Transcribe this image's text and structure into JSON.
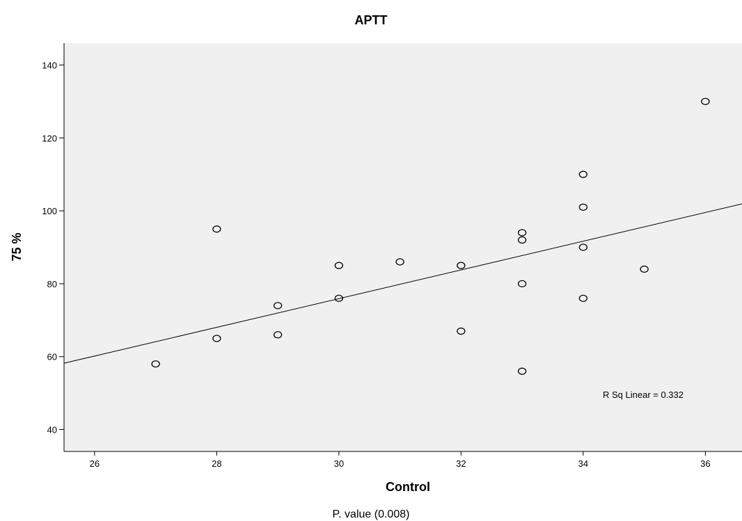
{
  "chart_data": {
    "type": "scatter",
    "title": "APTT",
    "xlabel": "Control",
    "ylabel": "75 %",
    "xlim": [
      25.5,
      36.6
    ],
    "ylim": [
      34,
      146
    ],
    "xticks": [
      26,
      28,
      30,
      32,
      34,
      36
    ],
    "yticks": [
      40,
      60,
      80,
      100,
      120,
      140
    ],
    "points": [
      {
        "x": 27,
        "y": 58
      },
      {
        "x": 28,
        "y": 95
      },
      {
        "x": 28,
        "y": 65
      },
      {
        "x": 29,
        "y": 74
      },
      {
        "x": 29,
        "y": 66
      },
      {
        "x": 30,
        "y": 85
      },
      {
        "x": 30,
        "y": 76
      },
      {
        "x": 31,
        "y": 86
      },
      {
        "x": 32,
        "y": 85
      },
      {
        "x": 32,
        "y": 67
      },
      {
        "x": 33,
        "y": 94
      },
      {
        "x": 33,
        "y": 92
      },
      {
        "x": 33,
        "y": 80
      },
      {
        "x": 33,
        "y": 56
      },
      {
        "x": 34,
        "y": 110
      },
      {
        "x": 34,
        "y": 101
      },
      {
        "x": 34,
        "y": 90
      },
      {
        "x": 34,
        "y": 76
      },
      {
        "x": 35,
        "y": 84
      },
      {
        "x": 36,
        "y": 130
      }
    ],
    "fit_line": {
      "x": [
        25.5,
        36.6
      ],
      "y": [
        58.2,
        101.9
      ]
    },
    "fit_annotation": "R Sq Linear = 0.332",
    "grid": false,
    "colors": {
      "plot_background": "#f0f0f0",
      "marker_stroke": "#000000",
      "line": "#000000"
    }
  },
  "caption": "P. value (0.008)"
}
